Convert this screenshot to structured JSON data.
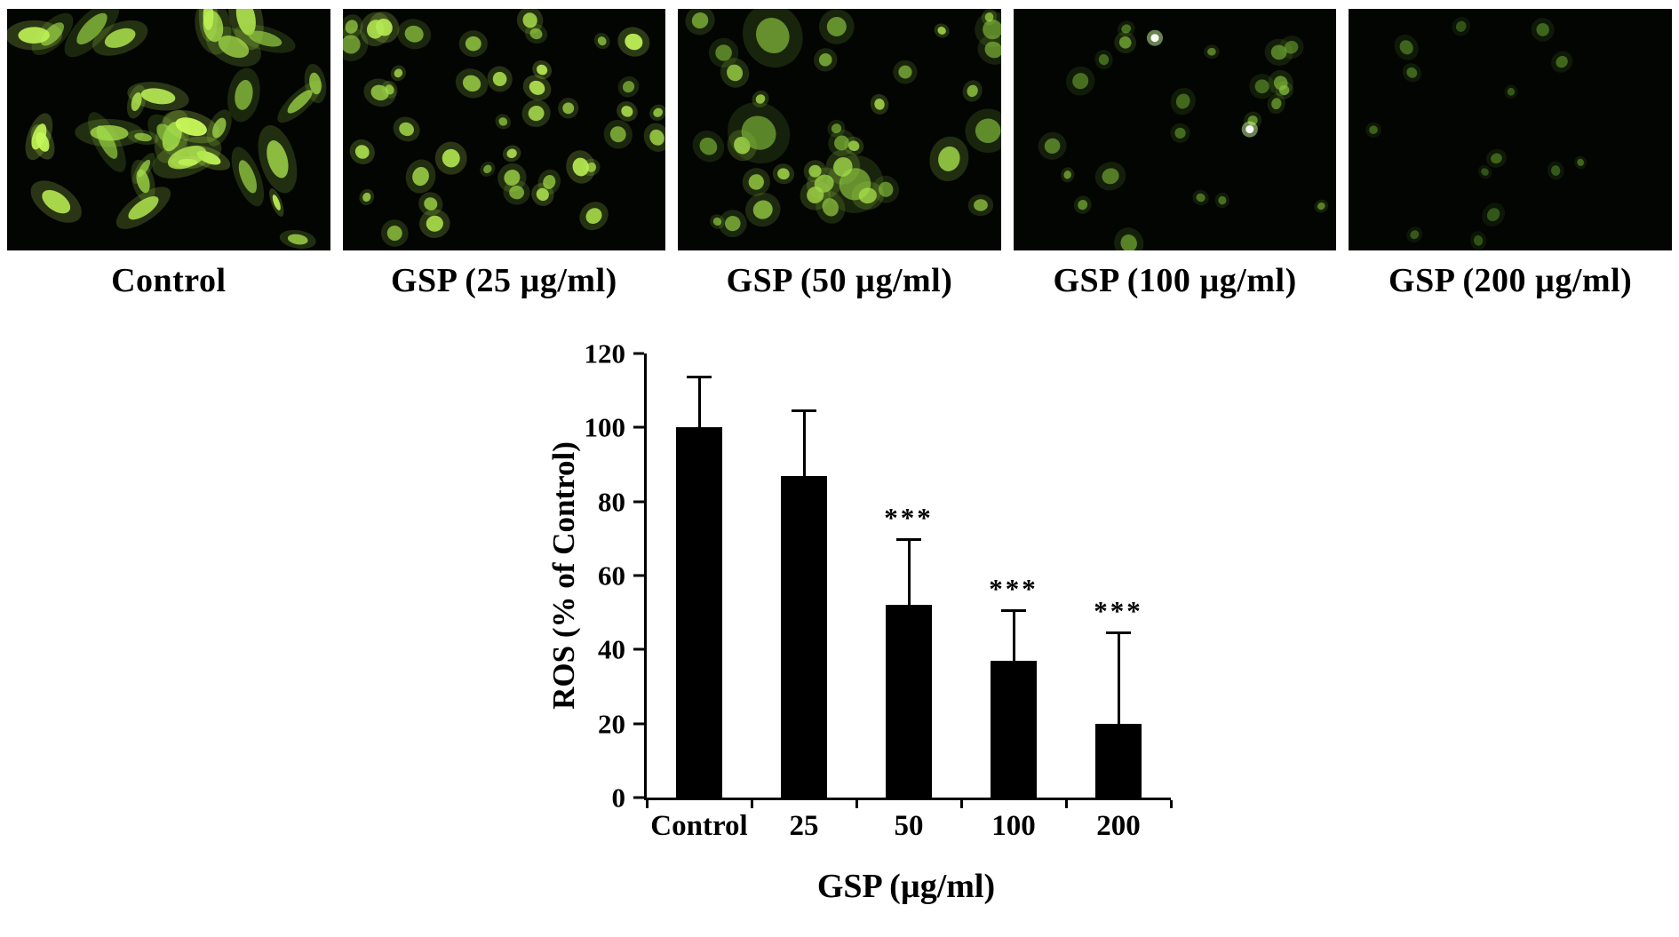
{
  "figure": {
    "panels": [
      {
        "label": "Control",
        "cells": {
          "count": 34,
          "style": "elongated",
          "brightness": 1.0,
          "seed": 11,
          "white_spots": 0
        }
      },
      {
        "label": "GSP (25 µg/ml)",
        "cells": {
          "count": 42,
          "style": "round",
          "brightness": 0.95,
          "seed": 22,
          "white_spots": 0
        }
      },
      {
        "label": "GSP (50 µg/ml)",
        "cells": {
          "count": 36,
          "style": "mixed",
          "brightness": 0.8,
          "seed": 33,
          "white_spots": 0
        }
      },
      {
        "label": "GSP (100 µg/ml)",
        "cells": {
          "count": 22,
          "style": "round",
          "brightness": 0.55,
          "seed": 44,
          "white_spots": 2
        }
      },
      {
        "label": "GSP (200 µg/ml)",
        "cells": {
          "count": 14,
          "style": "round",
          "brightness": 0.3,
          "seed": 55,
          "white_spots": 0
        }
      }
    ]
  },
  "chart_data": {
    "type": "bar",
    "categories": [
      "Control",
      "25",
      "50",
      "100",
      "200"
    ],
    "values": [
      100,
      87,
      52,
      37,
      20
    ],
    "errors_upper": [
      14,
      18,
      18,
      14,
      25
    ],
    "significance": [
      "",
      "",
      "***",
      "***",
      "***"
    ],
    "xlabel": "GSP (µg/ml)",
    "ylabel": "ROS (% of Control)",
    "ylim": [
      0,
      120
    ],
    "yticks": [
      0,
      20,
      40,
      60,
      80,
      100,
      120
    ],
    "bar_color": "#000000",
    "grid": false,
    "legend_position": "none"
  }
}
